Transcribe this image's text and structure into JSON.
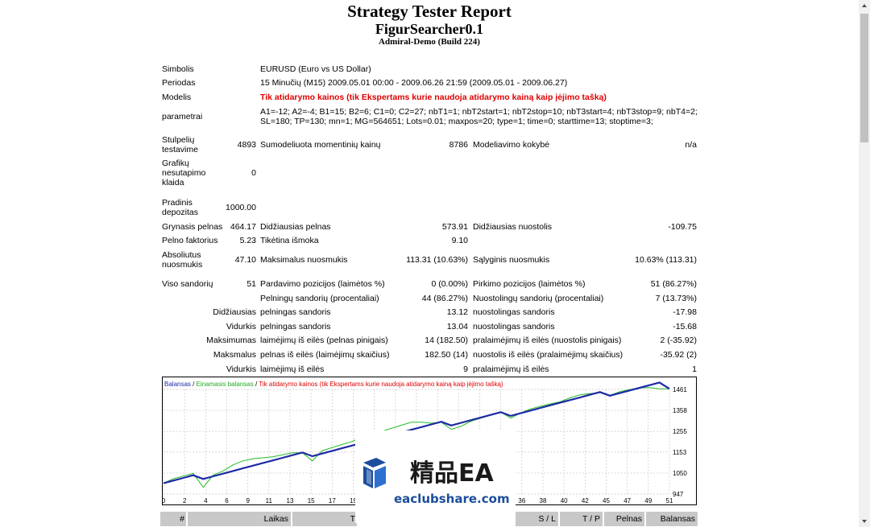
{
  "title": "Strategy Tester Report",
  "expert": "FigurSearcher0.1",
  "build": "Admiral-Demo (Build 224)",
  "rows": {
    "symbol": {
      "label": "Simbolis",
      "value": "EURUSD (Euro vs US Dollar)"
    },
    "period": {
      "label": "Periodas",
      "value": "15 Minučių (M15) 2009.05.01 00:00 - 2009.06.26 21:59 (2009.05.01 - 2009.06.27)"
    },
    "model": {
      "label": "Modelis",
      "value": "Tik atidarymo kainos (tik Ekspertams kurie naudoja atidarymo kainą kaip įėjimo tašką)"
    },
    "params": {
      "label": "parametrai",
      "line1": "A1=-12; A2=-4; B1=15; B2=6; C1=0; C2=27; nbT1=1; nbT2start=1; nbT2stop=10; nbT3start=4; nbT3stop=9; nbT4=2;",
      "line2": "SL=180; TP=130; mn=1; MG=564651; Lots=0.01; maxpos=20; type=1; time=0; starttime=13; stoptime=3;"
    }
  },
  "stats": {
    "bars_label_1": "Stulpelių",
    "bars_label_2": "testavime",
    "bars_value": "4893",
    "ticks_label": "Sumodeliuota momentinių kainų",
    "ticks_value": "8786",
    "quality_label": "Modeliavimo kokybė",
    "quality_value": "n/a",
    "mismatch_label_1": "Grafikų",
    "mismatch_label_2": "nesutapimo",
    "mismatch_label_3": "klaida",
    "mismatch_value": "0",
    "deposit_label_1": "Pradinis",
    "deposit_label_2": "depozitas",
    "deposit_value": "1000.00",
    "net_label": "Grynasis pelnas",
    "net_value": "464.17",
    "gross_profit_label": "Didžiausias pelnas",
    "gross_profit_value": "573.91",
    "gross_loss_label": "Didžiausias nuostolis",
    "gross_loss_value": "-109.75",
    "pf_label": "Pelno faktorius",
    "pf_value": "5.23",
    "payoff_label": "Tikėtina išmoka",
    "payoff_value": "9.10",
    "abs_dd_label_1": "Absoliutus",
    "abs_dd_label_2": "nuosmukis",
    "abs_dd_value": "47.10",
    "max_dd_label": "Maksimalus nuosmukis",
    "max_dd_value": "113.31 (10.63%)",
    "rel_dd_label": "Sąlyginis nuosmukis",
    "rel_dd_value": "10.63% (113.31)",
    "trades_label": "Viso sandorių",
    "trades_value": "51",
    "short_label": "Pardavimo pozicijos (laimėtos %)",
    "short_value": "0 (0.00%)",
    "long_label": "Pirkimo pozicijos (laimėtos %)",
    "long_value": "51 (86.27%)",
    "profit_trades_label": "Pelningų sandorių (procentaliai)",
    "profit_trades_value": "44 (86.27%)",
    "loss_trades_label": "Nuostolingų sandorių (procentaliai)",
    "loss_trades_value": "7 (13.73%)",
    "largest_label": "Didžiausias",
    "largest_profit_label": "pelningas sandoris",
    "largest_profit_value": "13.12",
    "largest_loss_label": "nuostolingas sandoris",
    "largest_loss_value": "-17.98",
    "average_label": "Vidurkis",
    "avg_profit_label": "pelningas sandoris",
    "avg_profit_value": "13.04",
    "avg_loss_label": "nuostolingas sandoris",
    "avg_loss_value": "-15.68",
    "maximum_label": "Maksimumas",
    "max_cons_wins_label": "laimėjimų iš eilės (pelnas pinigais)",
    "max_cons_wins_value": "14 (182.50)",
    "max_cons_losses_label": "pralaimėjimų iš eilės (nuostolis pinigais)",
    "max_cons_losses_value": "2 (-35.92)",
    "maximal_label": "Maksmalus",
    "max_cons_profit_label": "pelnas iš eilės (laimėjimų skaičius)",
    "max_cons_profit_value": "182.50 (14)",
    "max_cons_loss_label": "nuostolis iš eilės (pralaimėjimų skaičius)",
    "max_cons_loss_value": "-35.92 (2)",
    "average2_label": "Vidurkis",
    "avg_cons_wins_label": "laimėjimų iš eilės",
    "avg_cons_wins_value": "9",
    "avg_cons_losses_label": "pralaimėjimų iš eilės",
    "avg_cons_losses_value": "1"
  },
  "chart_data": {
    "type": "line",
    "legend": {
      "balance": "Balansas",
      "sep": " / ",
      "equity": "Einamasis balansas",
      "model": "Tik atidarymo kainos (tik Ekspertams kurie naudoja atidarymo kainą kaip įėjimo tašką)"
    },
    "x_ticks": [
      "0",
      "2",
      "4",
      "6",
      "9",
      "11",
      "13",
      "15",
      "17",
      "19",
      "21",
      "23",
      "25",
      "28",
      "30",
      "32",
      "34",
      "36",
      "38",
      "40",
      "42",
      "45",
      "47",
      "49",
      "51"
    ],
    "y_ticks": [
      "1461",
      "1358",
      "1255",
      "1153",
      "1050",
      "947"
    ],
    "ylim": [
      947,
      1461
    ],
    "xlim": [
      0,
      51
    ],
    "series": [
      {
        "name": "Balansas",
        "color": "#1c2aa6",
        "x": [
          0,
          1,
          2,
          3,
          4,
          5,
          6,
          7,
          8,
          9,
          10,
          11,
          12,
          13,
          14,
          15,
          16,
          17,
          18,
          19,
          20,
          21,
          22,
          23,
          24,
          25,
          26,
          27,
          28,
          29,
          30,
          31,
          32,
          33,
          34,
          35,
          36,
          37,
          38,
          39,
          40,
          41,
          42,
          43,
          44,
          45,
          46,
          47,
          48,
          49,
          50,
          51
        ],
        "values": [
          1000,
          1013,
          1026,
          1039,
          1021,
          1034,
          1047,
          1060,
          1073,
          1086,
          1099,
          1112,
          1125,
          1138,
          1151,
          1133,
          1146,
          1159,
          1172,
          1185,
          1198,
          1211,
          1224,
          1237,
          1250,
          1263,
          1276,
          1289,
          1302,
          1284,
          1297,
          1310,
          1323,
          1336,
          1349,
          1331,
          1344,
          1357,
          1370,
          1383,
          1396,
          1409,
          1422,
          1435,
          1448,
          1430,
          1443,
          1456,
          1469,
          1482,
          1495,
          1464
        ]
      },
      {
        "name": "Einamasis balansas",
        "color": "#22bb22",
        "x": [
          0,
          1,
          2,
          3,
          4,
          5,
          6,
          7,
          8,
          9,
          10,
          11,
          12,
          13,
          14,
          15,
          16,
          17,
          18,
          19,
          20,
          21,
          22,
          23,
          24,
          25,
          26,
          27,
          28,
          29,
          30,
          31,
          32,
          33,
          34,
          35,
          36,
          37,
          38,
          39,
          40,
          41,
          42,
          43,
          44,
          45,
          46,
          47,
          48,
          49,
          50,
          51
        ],
        "values": [
          1000,
          1022,
          1035,
          1048,
          980,
          1040,
          1060,
          1090,
          1110,
          1120,
          1125,
          1130,
          1140,
          1150,
          1150,
          1110,
          1160,
          1175,
          1190,
          1205,
          1228,
          1240,
          1255,
          1270,
          1285,
          1300,
          1300,
          1295,
          1300,
          1265,
          1280,
          1305,
          1320,
          1335,
          1350,
          1320,
          1345,
          1365,
          1378,
          1390,
          1400,
          1420,
          1435,
          1440,
          1445,
          1432,
          1450,
          1460,
          1469,
          1470,
          1464,
          1464
        ]
      }
    ]
  },
  "table_header": [
    "#",
    "Laikas",
    "Ti",
    "S / L",
    "T / P",
    "Pelnas",
    "Balansas"
  ],
  "watermark": {
    "cn": "精品EA",
    "url": "eaclubshare.com"
  }
}
